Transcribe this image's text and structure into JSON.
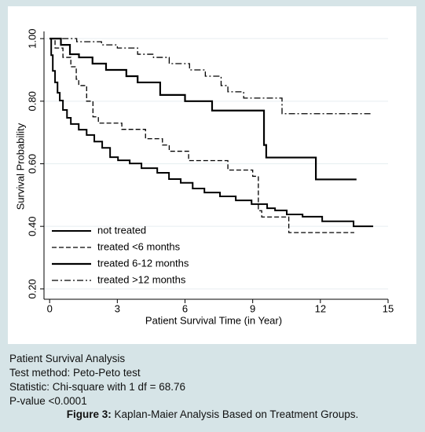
{
  "chart_data": {
    "type": "step",
    "xlabel": "Patient Survival Time (in Year)",
    "ylabel": "Survival Probability",
    "xlim": [
      -0.25,
      15
    ],
    "ylim": [
      0.167,
      1.023
    ],
    "xticks": [
      0,
      3,
      6,
      9,
      12,
      15
    ],
    "yticks": [
      {
        "value": 0.2,
        "label": "0.20"
      },
      {
        "value": 0.4,
        "label": "0.40"
      },
      {
        "value": 0.6,
        "label": "0.60"
      },
      {
        "value": 0.8,
        "label": "0.80"
      },
      {
        "value": 1.0,
        "label": "1.00"
      }
    ],
    "grid": true,
    "legend": "lower left",
    "series": [
      {
        "name": "not treated",
        "color": "#000000",
        "width": 2,
        "dash": "none",
        "x": [
          0,
          0.07,
          0.14,
          0.24,
          0.35,
          0.45,
          0.59,
          0.77,
          0.94,
          1.29,
          1.64,
          1.98,
          2.33,
          2.68,
          3.03,
          3.55,
          4.07,
          4.77,
          5.29,
          5.81,
          6.34,
          6.86,
          7.55,
          8.25,
          8.95,
          9.64,
          9.99,
          10.51,
          11.21,
          12.08,
          13.47,
          14.34
        ],
        "values": [
          1.0,
          0.947,
          0.897,
          0.86,
          0.827,
          0.802,
          0.772,
          0.747,
          0.727,
          0.709,
          0.692,
          0.671,
          0.651,
          0.621,
          0.611,
          0.601,
          0.586,
          0.571,
          0.551,
          0.539,
          0.521,
          0.508,
          0.496,
          0.483,
          0.471,
          0.458,
          0.451,
          0.438,
          0.431,
          0.416,
          0.4,
          0.4
        ]
      },
      {
        "name": "treated <6 months",
        "color": "#000000",
        "width": 1.3,
        "dash": "6,3",
        "x": [
          0,
          0.24,
          0.59,
          0.94,
          1.18,
          1.29,
          1.64,
          1.92,
          2.16,
          3.2,
          4.25,
          5.0,
          5.3,
          6.16,
          7.9,
          9.0,
          9.25,
          9.4,
          10.6,
          13.5
        ],
        "values": [
          1.0,
          0.97,
          0.94,
          0.91,
          0.87,
          0.85,
          0.8,
          0.75,
          0.73,
          0.71,
          0.68,
          0.66,
          0.64,
          0.61,
          0.58,
          0.56,
          0.45,
          0.43,
          0.38,
          0.38
        ]
      },
      {
        "name": "treated 6-12 months",
        "color": "#000000",
        "width": 2.2,
        "dash": "none",
        "x": [
          0,
          0.5,
          0.9,
          1.3,
          1.9,
          2.5,
          3.4,
          3.9,
          4.9,
          6.0,
          7.2,
          9.5,
          9.6,
          11.8,
          13.6
        ],
        "values": [
          1.0,
          0.98,
          0.95,
          0.94,
          0.92,
          0.9,
          0.88,
          0.86,
          0.82,
          0.8,
          0.77,
          0.66,
          0.62,
          0.55,
          0.55
        ]
      },
      {
        "name": "treated >12 months",
        "color": "#000000",
        "width": 1.3,
        "dash": "8,3,2,3",
        "x": [
          0,
          1.2,
          2.3,
          3.0,
          3.9,
          4.6,
          5.3,
          6.2,
          6.9,
          7.6,
          7.9,
          8.6,
          10.3,
          14.3
        ],
        "values": [
          1.0,
          0.99,
          0.98,
          0.97,
          0.95,
          0.94,
          0.92,
          0.9,
          0.88,
          0.85,
          0.83,
          0.81,
          0.76,
          0.76
        ]
      }
    ]
  },
  "notes": [
    "Patient Survival Analysis",
    "Test method: Peto-Peto test",
    "Statistic: Chi-square with 1 df = 68.76",
    "P-value <0.0001"
  ],
  "caption": {
    "label": "Figure 3:",
    "text": "Kaplan-Maier Analysis Based on Treatment Groups."
  }
}
